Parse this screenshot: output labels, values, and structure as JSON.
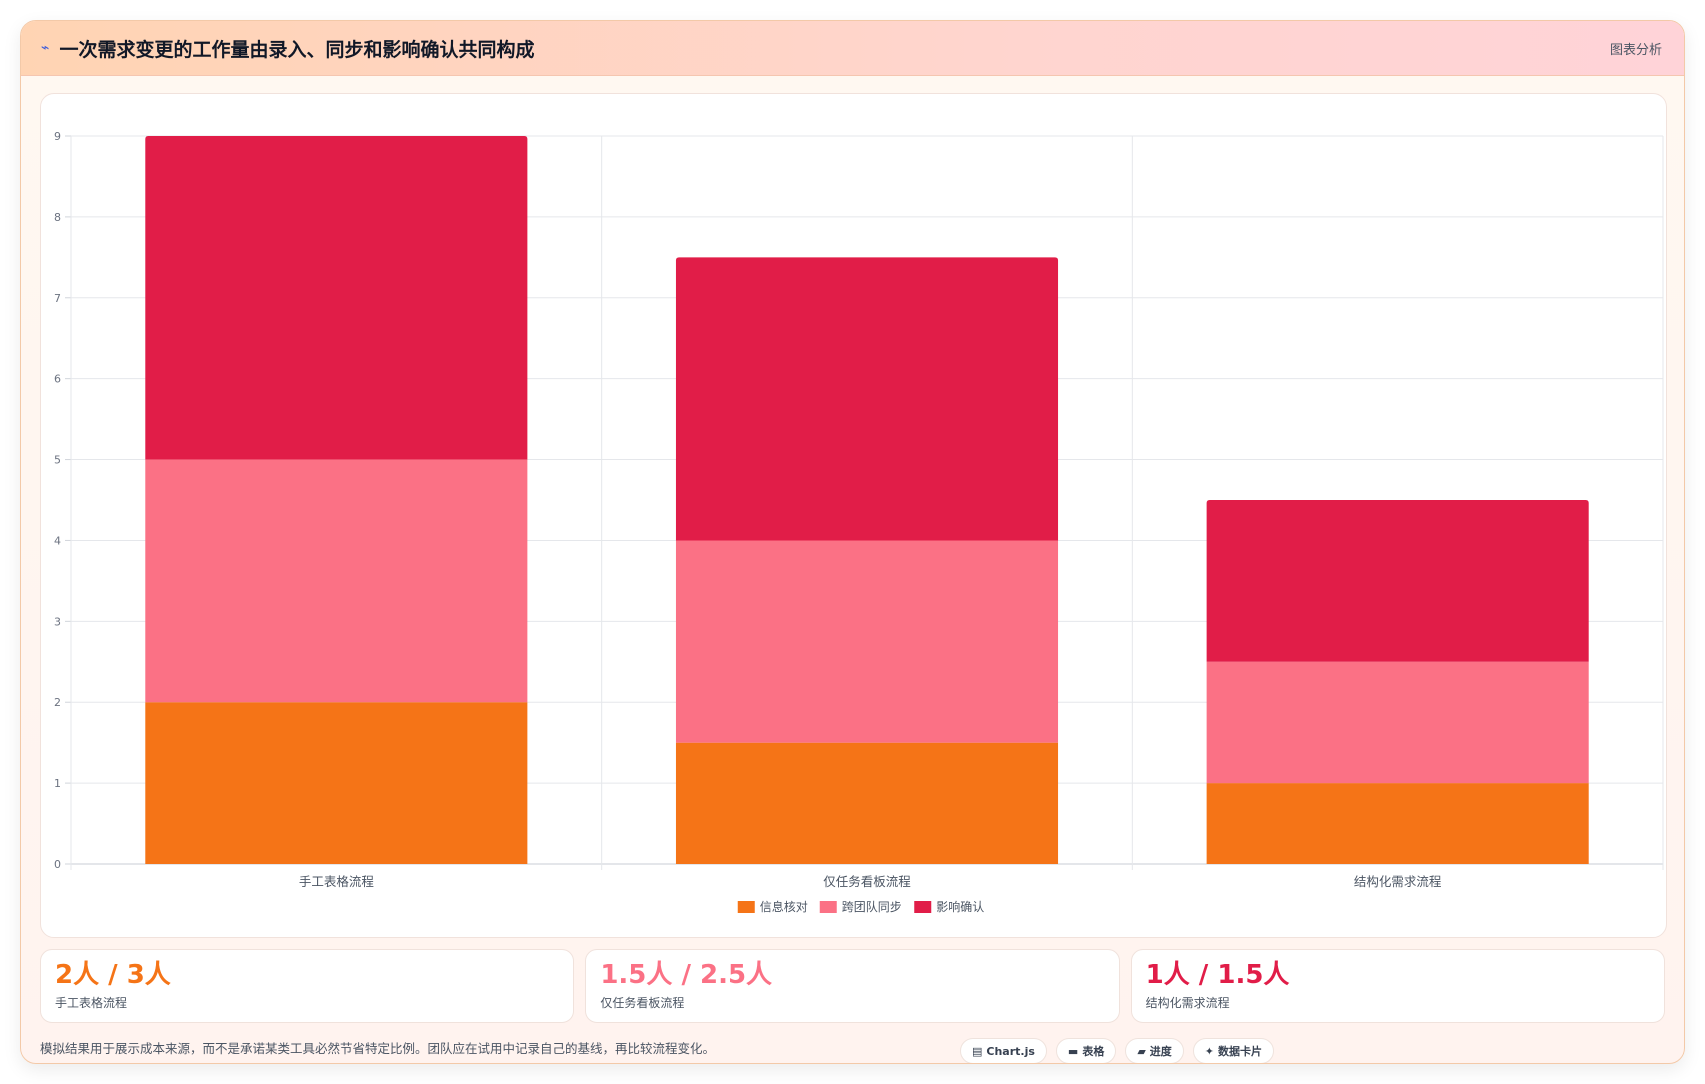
{
  "header": {
    "icon": "bolt-icon",
    "title": "一次需求变更的工作量由录入、同步和影响确认共同构成",
    "action_label": "图表分析"
  },
  "chart_data": {
    "type": "bar",
    "stacked": true,
    "categories": [
      "手工表格流程",
      "仅任务看板流程",
      "结构化需求流程"
    ],
    "series": [
      {
        "name": "信息核对",
        "values": [
          2,
          1.5,
          1
        ],
        "color": "#f57417"
      },
      {
        "name": "跨团队同步",
        "values": [
          3,
          2.5,
          1.5
        ],
        "color": "#fb7185"
      },
      {
        "name": "影响确认",
        "values": [
          4,
          3.5,
          2
        ],
        "color": "#e11d48"
      }
    ],
    "ylim": [
      0,
      9
    ],
    "yticks": [
      "0",
      "1",
      "2",
      "3",
      "4",
      "5",
      "6",
      "7",
      "8",
      "9"
    ],
    "grid": true,
    "legend": "bottom"
  },
  "stats": [
    {
      "value": "2人 / 3人",
      "label": "手工表格流程",
      "color": "#f57417"
    },
    {
      "value": "1.5人 / 2.5人",
      "label": "仅任务看板流程",
      "color": "#fb7185"
    },
    {
      "value": "1人 / 1.5人",
      "label": "结构化需求流程",
      "color": "#e11d48"
    }
  ],
  "footer": {
    "note": "模拟结果用于展示成本来源，而不是承诺某类工具必然节省特定比例。团队应在试用中记录自己的基线，再比较流程变化。",
    "tags": [
      {
        "icon": "chart-icon",
        "glyph": "▤",
        "label": "Chart.js"
      },
      {
        "icon": "table-icon",
        "glyph": "▬",
        "label": "表格"
      },
      {
        "icon": "progress-icon",
        "glyph": "▰",
        "label": "进度"
      },
      {
        "icon": "sparkle-icon",
        "glyph": "✦",
        "label": "数据卡片"
      }
    ]
  }
}
